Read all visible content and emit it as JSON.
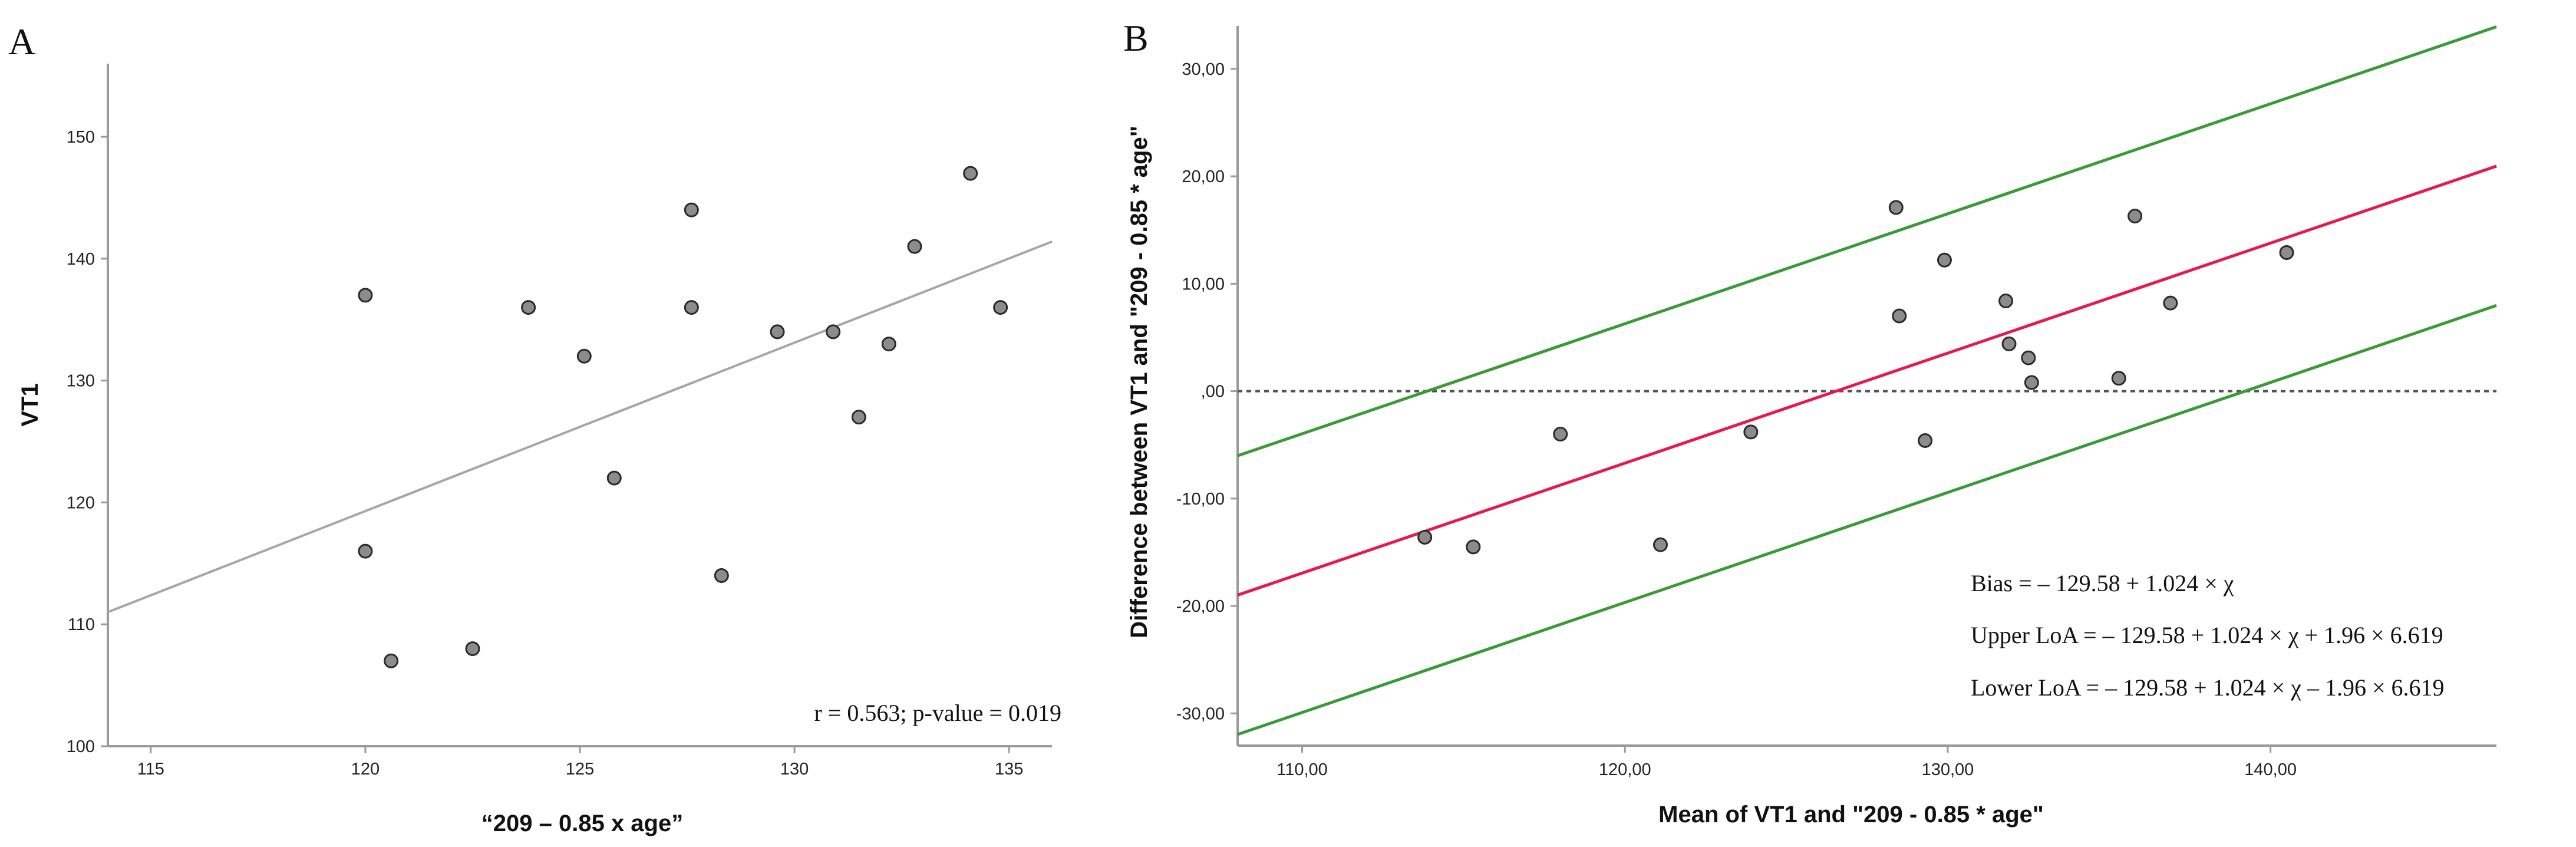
{
  "figure": {
    "panels": [
      "A",
      "B"
    ]
  },
  "chart_data": [
    {
      "id": "A",
      "type": "scatter",
      "panel_label": "A",
      "title": "",
      "xlabel": "“209 – 0.85 x age”",
      "ylabel": "VT1",
      "xlim": [
        114,
        136
      ],
      "ylim": [
        100,
        156
      ],
      "xticks": [
        115,
        120,
        125,
        130,
        135
      ],
      "yticks": [
        100,
        110,
        120,
        130,
        140,
        150
      ],
      "x": [
        120.0,
        120.0,
        120.6,
        122.5,
        123.8,
        125.1,
        125.8,
        127.6,
        127.6,
        128.3,
        129.6,
        130.9,
        131.5,
        132.2,
        132.8,
        134.1,
        134.8
      ],
      "y": [
        137,
        116,
        107,
        108,
        136,
        132,
        122,
        144,
        136,
        114,
        134,
        134,
        127,
        133,
        141,
        147,
        136
      ],
      "fit_line": {
        "x": [
          114,
          136
        ],
        "y": [
          111,
          141.4
        ]
      },
      "annotation": "r = 0.563; p-value = 0.019",
      "colors": {
        "points": "#8c8c8c",
        "point_edge": "#2a2a2a",
        "fit": "#a6a6a6",
        "axis": "#9a9a9a"
      }
    },
    {
      "id": "B",
      "type": "scatter",
      "panel_label": "B",
      "title": "",
      "xlabel": "Mean of VT1 and \"209 - 0.85 * age\"",
      "ylabel": "Difference between VT1 and \"209 - 0.85 * age\"",
      "xlim": [
        108,
        147
      ],
      "ylim": [
        -33,
        34
      ],
      "xticks": [
        110,
        120,
        130,
        140
      ],
      "xtick_labels": [
        "110,00",
        "120,00",
        "130,00",
        "140,00"
      ],
      "yticks": [
        -30,
        -20,
        -10,
        0,
        10,
        20,
        30
      ],
      "ytick_labels": [
        "-30,00",
        "-20,00",
        "-10,00",
        ",00",
        "10,00",
        "20,00",
        "30,00"
      ],
      "x": [
        113.8,
        115.3,
        118.0,
        121.1,
        123.9,
        128.4,
        128.5,
        129.3,
        129.9,
        131.8,
        131.9,
        132.5,
        132.6,
        135.3,
        135.8,
        136.9,
        140.5
      ],
      "y": [
        -13.6,
        -14.5,
        -4.0,
        -14.3,
        -3.8,
        17.1,
        7.0,
        -4.6,
        12.2,
        8.4,
        4.4,
        3.1,
        0.8,
        1.2,
        16.3,
        8.2,
        12.9
      ],
      "zero_line": 0,
      "bias": {
        "intercept": -129.58,
        "slope": 1.024
      },
      "loa_sd": 6.619,
      "loa_multiplier": 1.96,
      "annotations": [
        "Bias = – 129.58 + 1.024 × χ",
        "Upper LoA = – 129.58 + 1.024 × χ + 1.96 × 6.619",
        "Lower LoA = – 129.58 + 1.024 × χ – 1.96 × 6.619"
      ],
      "colors": {
        "bias": "#e8194a",
        "loa": "#3a9a35",
        "points": "#8c8c8c",
        "point_edge": "#2a2a2a",
        "zero": "#555555",
        "axis": "#9a9a9a"
      }
    }
  ]
}
